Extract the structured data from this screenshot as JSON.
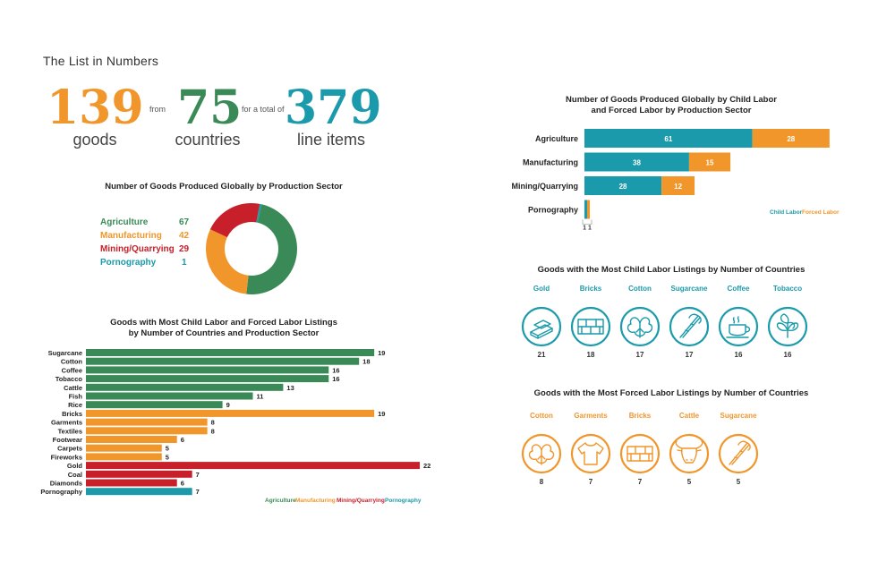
{
  "page": {
    "title": "The List in Numbers"
  },
  "summary": {
    "goods_num": "139",
    "goods_word": "goods",
    "from_word": "from",
    "countries_num": "75",
    "countries_word": "countries",
    "total_word": "for a total of",
    "items_num": "379",
    "items_word": "line items"
  },
  "colors": {
    "agriculture": "#3a8a57",
    "manufacturing": "#f0962a",
    "mining": "#c8202a",
    "pornography": "#1a9aab",
    "child": "#1a9aab",
    "forced": "#f0962a"
  },
  "sector_chart": {
    "title": "Number of Goods Produced Globally by Production Sector",
    "chart_data": {
      "type": "pie",
      "categories": [
        "Agriculture",
        "Manufacturing",
        "Mining/Quarrying",
        "Pornography"
      ],
      "values": [
        67,
        42,
        29,
        1
      ]
    }
  },
  "goods_chart": {
    "title_line1": "Goods with Most Child Labor and Forced Labor Listings",
    "title_line2": "by Number of Countries and Production Sector",
    "chart_data": {
      "type": "bar",
      "categories": [
        "Sugarcane",
        "Cotton",
        "Coffee",
        "Tobacco",
        "Cattle",
        "Fish",
        "Rice",
        "Bricks",
        "Garments",
        "Textiles",
        "Footwear",
        "Carpets",
        "Fireworks",
        "Gold",
        "Coal",
        "Diamonds",
        "Pornography"
      ],
      "values": [
        19,
        18,
        16,
        16,
        13,
        11,
        9,
        19,
        8,
        8,
        6,
        5,
        5,
        22,
        7,
        6,
        7
      ],
      "sectors": [
        "agriculture",
        "agriculture",
        "agriculture",
        "agriculture",
        "agriculture",
        "agriculture",
        "agriculture",
        "manufacturing",
        "manufacturing",
        "manufacturing",
        "manufacturing",
        "manufacturing",
        "manufacturing",
        "mining",
        "mining",
        "mining",
        "pornography"
      ],
      "xlim": [
        0,
        22
      ]
    },
    "legend": [
      "Agriculture",
      "Manufacturing",
      "Mining/Quarrying",
      "Pornography"
    ]
  },
  "labor_chart": {
    "title_line1": "Number of Goods Produced Globally by Child Labor",
    "title_line2": "and Forced Labor by Production Sector",
    "chart_data": {
      "type": "bar",
      "categories": [
        "Agriculture",
        "Manufacturing",
        "Mining/Quarrying",
        "Pornography"
      ],
      "series": [
        {
          "name": "Child Labor",
          "values": [
            61,
            38,
            28,
            1
          ]
        },
        {
          "name": "Forced Labor",
          "values": [
            28,
            15,
            12,
            1
          ]
        }
      ],
      "xlim": [
        0,
        91
      ]
    },
    "porn_label": "1  1",
    "legend_child": "Child Labor",
    "legend_forced": "Forced Labor"
  },
  "child_icons": {
    "title": "Goods with the Most Child Labor Listings by Number of Countries",
    "items": [
      {
        "label": "Gold",
        "value": "21",
        "icon": "gold-bars-icon"
      },
      {
        "label": "Bricks",
        "value": "18",
        "icon": "bricks-icon"
      },
      {
        "label": "Cotton",
        "value": "17",
        "icon": "cotton-icon"
      },
      {
        "label": "Sugarcane",
        "value": "17",
        "icon": "sugarcane-icon"
      },
      {
        "label": "Coffee",
        "value": "16",
        "icon": "coffee-icon"
      },
      {
        "label": "Tobacco",
        "value": "16",
        "icon": "tobacco-icon"
      }
    ]
  },
  "forced_icons": {
    "title": "Goods with the Most Forced Labor Listings by Number of Countries",
    "items": [
      {
        "label": "Cotton",
        "value": "8",
        "icon": "cotton-icon"
      },
      {
        "label": "Garments",
        "value": "7",
        "icon": "garment-icon"
      },
      {
        "label": "Bricks",
        "value": "7",
        "icon": "bricks-icon"
      },
      {
        "label": "Cattle",
        "value": "5",
        "icon": "cattle-icon"
      },
      {
        "label": "Sugarcane",
        "value": "5",
        "icon": "sugarcane-icon"
      }
    ]
  }
}
